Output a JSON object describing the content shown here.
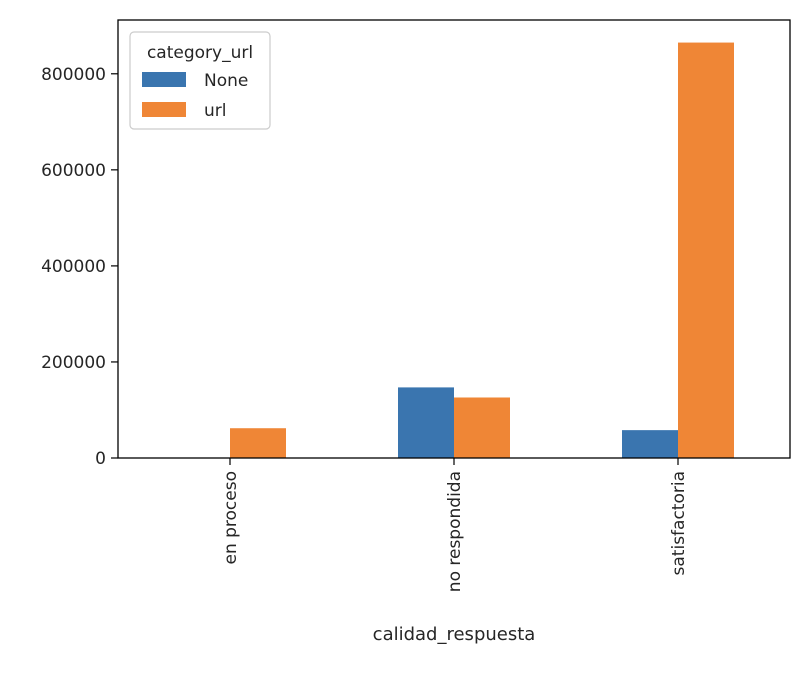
{
  "chart_data": {
    "type": "bar",
    "title": "",
    "xlabel": "calidad_respuesta",
    "ylabel": "",
    "categories": [
      "en proceso",
      "no respondida",
      "satisfactoria"
    ],
    "series": [
      {
        "name": "None",
        "values": [
          0,
          147000,
          58000
        ],
        "color": "#3a75af"
      },
      {
        "name": "url",
        "values": [
          62000,
          126000,
          865000
        ],
        "color": "#ef8636"
      }
    ],
    "ylim": [
      0,
      912000
    ],
    "yticks": [
      0,
      200000,
      400000,
      600000,
      800000
    ],
    "ytick_labels": [
      "0",
      "200000",
      "400000",
      "600000",
      "800000"
    ],
    "legend": {
      "title": "category_url",
      "placement": "top-left"
    },
    "grid": false
  }
}
